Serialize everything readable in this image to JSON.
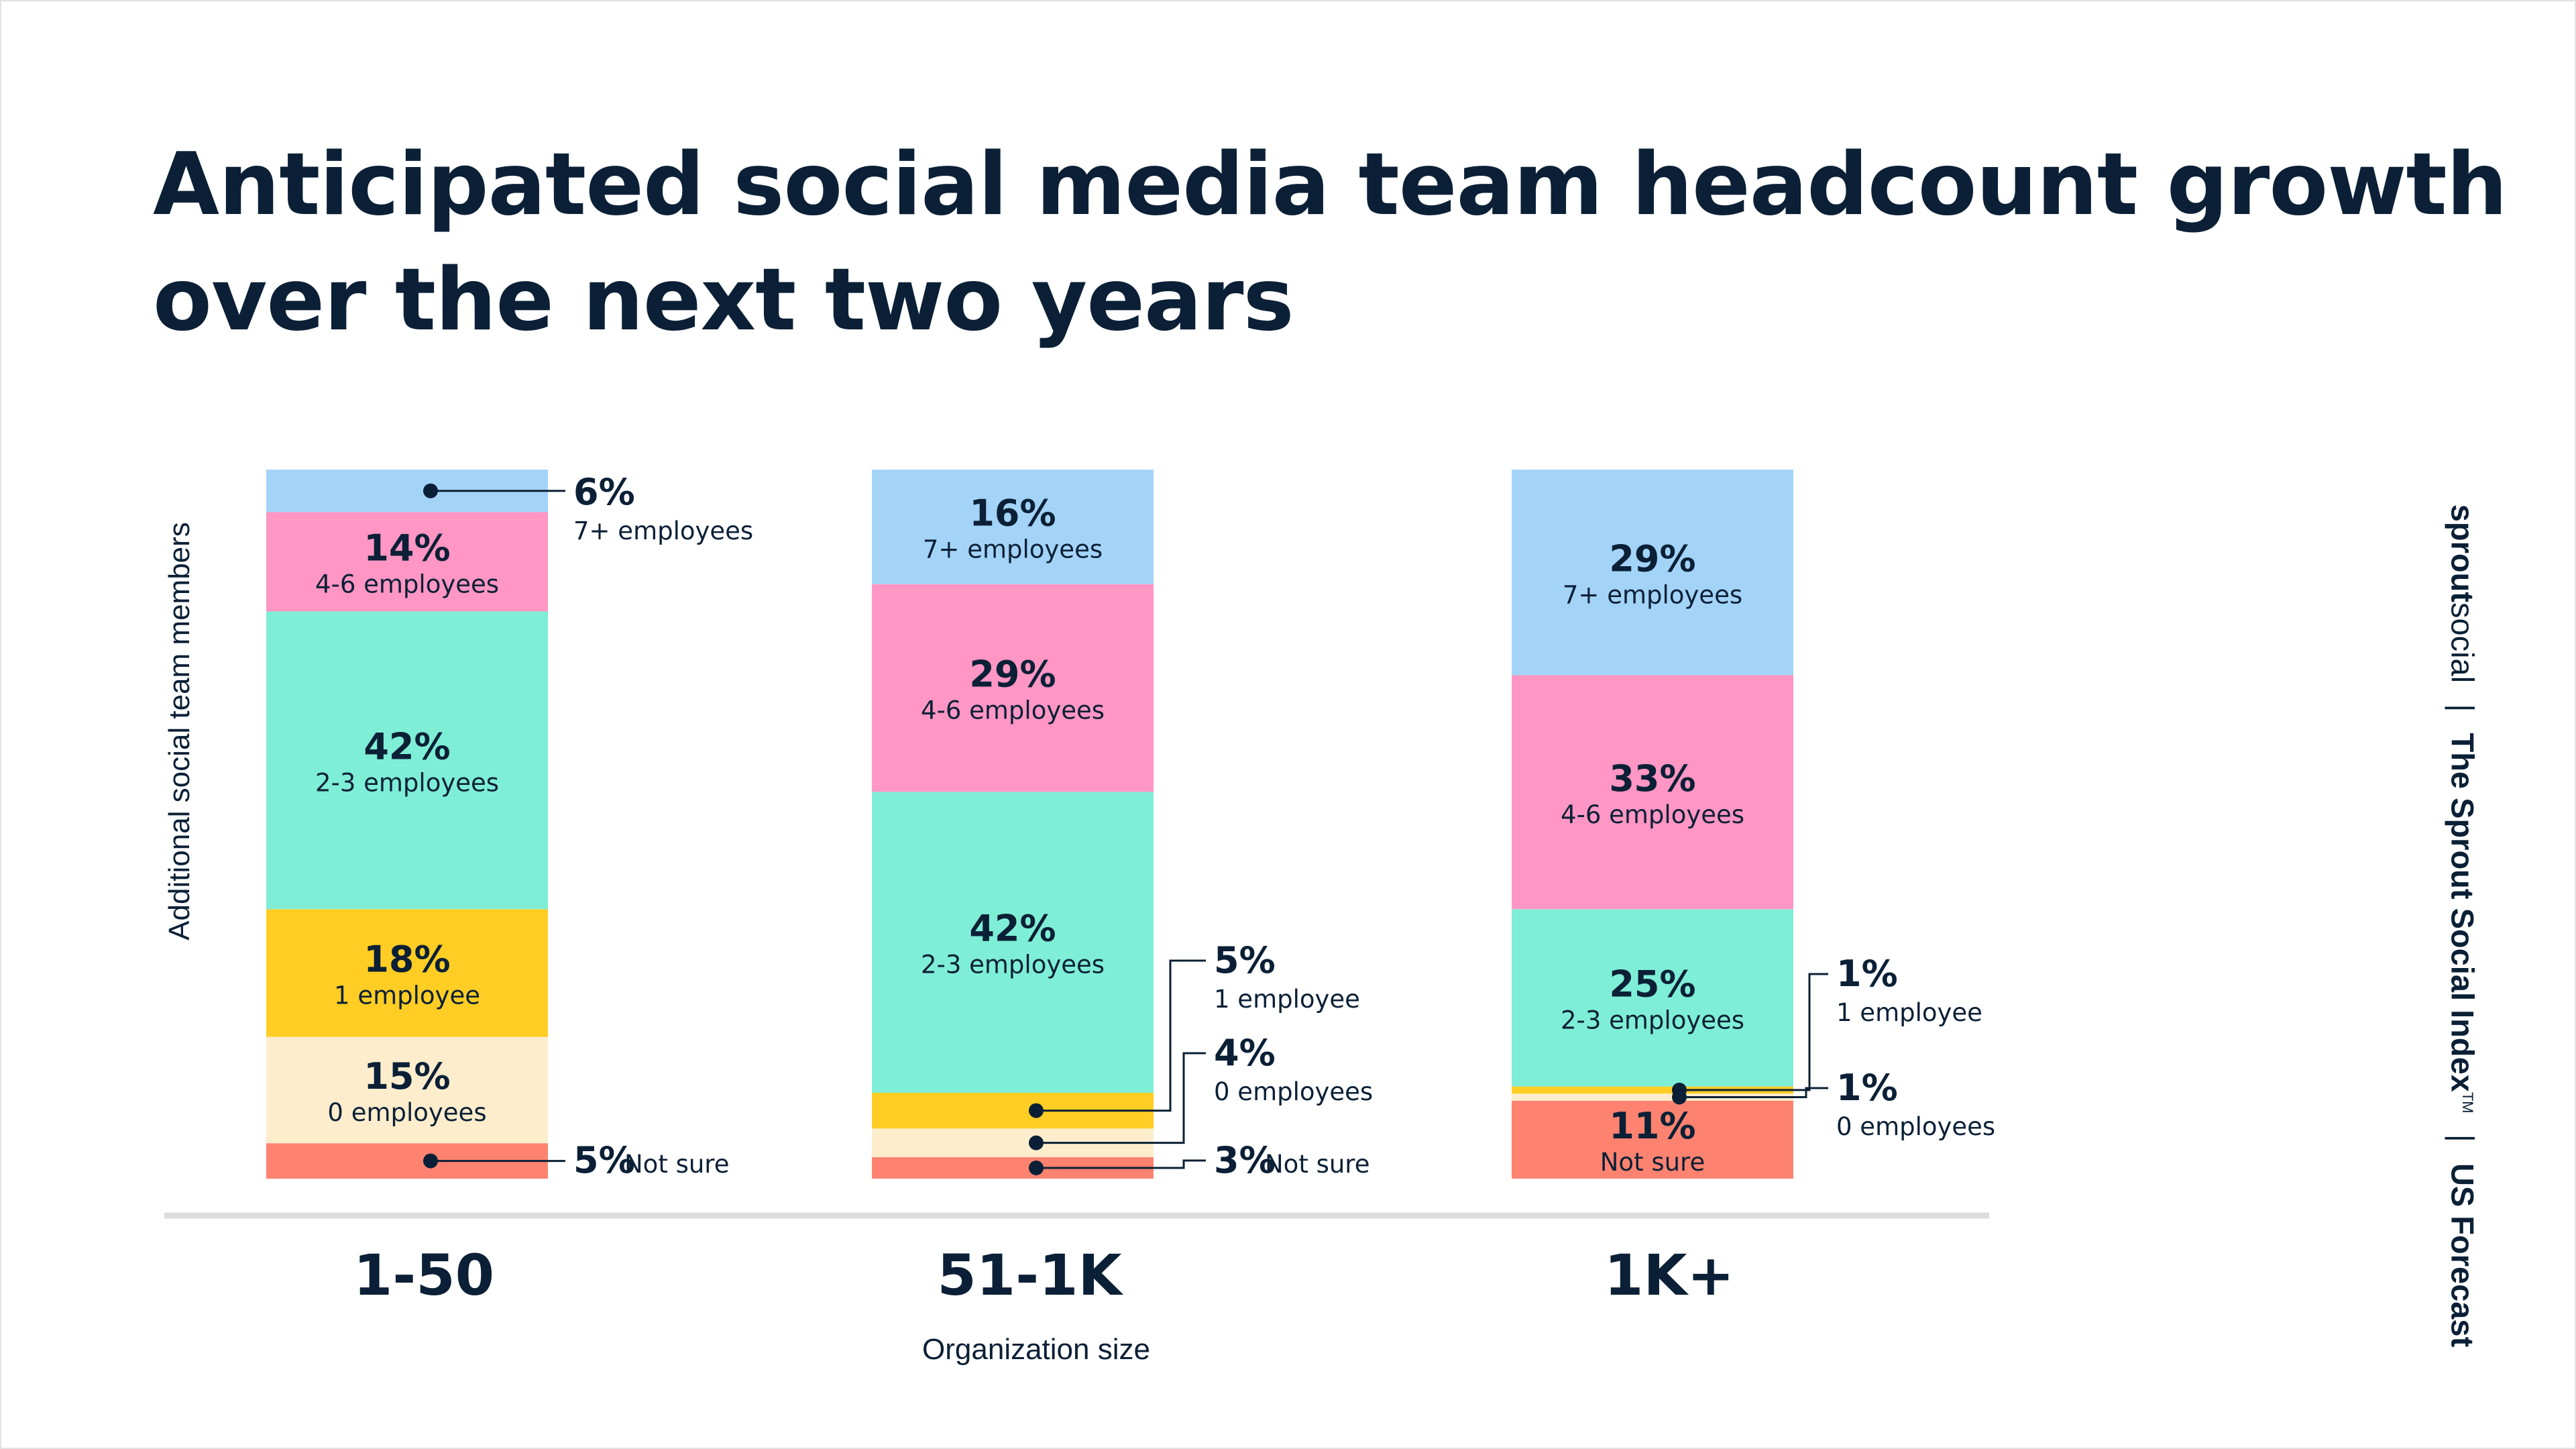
{
  "header": {
    "title_line1": "Anticipated social media team headcount growth",
    "title_line2": "over the next two years"
  },
  "brand": {
    "sprout": "sprout",
    "social": "social",
    "report": "The Sprout Social Index",
    "tm": "TM",
    "separator": "|",
    "region": "US Forecast"
  },
  "chart_data": {
    "type": "bar",
    "stacked": true,
    "xlabel": "Organization size",
    "ylabel": "Additional social team members",
    "categories": [
      "1-50",
      "51-1K",
      "1K+"
    ],
    "series": [
      {
        "name": "Not sure",
        "color": "#fd8370",
        "values": [
          5,
          3,
          11
        ]
      },
      {
        "name": "0 employees",
        "color": "#fdedcd",
        "values": [
          15,
          4,
          1
        ]
      },
      {
        "name": "1 employee",
        "color": "#ffcd23",
        "values": [
          18,
          5,
          1
        ]
      },
      {
        "name": "2-3 employees",
        "color": "#7feed6",
        "values": [
          42,
          42,
          25
        ]
      },
      {
        "name": "4-6 employees",
        "color": "#ff96c4",
        "values": [
          14,
          29,
          33
        ]
      },
      {
        "name": "7+ employees",
        "color": "#a4d3f8",
        "values": [
          6,
          16,
          29
        ]
      }
    ],
    "value_suffix": "%",
    "ylim": [
      0,
      100
    ],
    "legend": "none",
    "grid": false,
    "baseline_color": "#dddddd",
    "text_color": "#0b2036"
  }
}
